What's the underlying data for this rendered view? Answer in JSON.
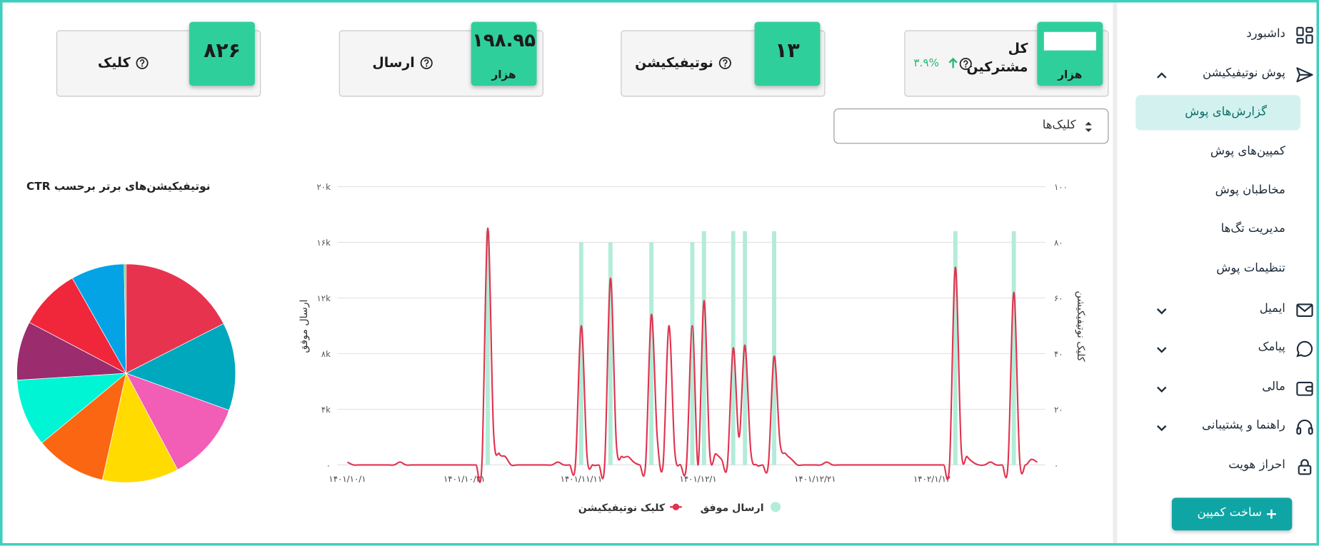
{
  "sidebar": {
    "items": [
      "داشبورد",
      "پوش نوتیفیکیشن",
      "ایمیل",
      "پیامک",
      "مالی",
      "راهنما و پشتیبانی",
      "احراز هویت"
    ],
    "subitems": [
      "گزارش‌های پوش",
      "کمپین‌های پوش",
      "مخاطبان پوش",
      "مدیریت تگ‌ها",
      "تنظیمات پوش"
    ],
    "button": "ساخت کمپین"
  },
  "stats": [
    {
      "label": "کل مشترکین",
      "unit": "هزار",
      "change": "۳.۹%"
    },
    {
      "label": "نوتیفیکیشن",
      "value": "۱۳"
    },
    {
      "label": "ارسال",
      "value": "۱۹۸.۹۵",
      "unit": "هزار"
    },
    {
      "label": "کلیک",
      "value": "۸۲۶"
    }
  ],
  "select": "کلیک‌ها",
  "chart_data": [
    {
      "type": "line",
      "ylabel": "ارسال موفق",
      "y2label": "کلیک نوتیفیکیشن",
      "categories": [
        "۱۴۰۱/۱۰/۱",
        null,
        null,
        null,
        null,
        null,
        null,
        null,
        null,
        null,
        null,
        null,
        null,
        null,
        null,
        null,
        null,
        null,
        null,
        null,
        "۱۴۰۱/۱۰/۲۱",
        null,
        null,
        null,
        null,
        null,
        null,
        null,
        null,
        null,
        null,
        null,
        null,
        null,
        null,
        null,
        null,
        null,
        null,
        null,
        "۱۴۰۱/۱۱/۱۱",
        null,
        null,
        null,
        null,
        null,
        null,
        null,
        null,
        null,
        null,
        null,
        null,
        null,
        null,
        null,
        null,
        null,
        null,
        null,
        "۱۴۰۱/۱۲/۱",
        null,
        null,
        null,
        null,
        null,
        null,
        null,
        null,
        null,
        null,
        null,
        null,
        null,
        null,
        null,
        null,
        null,
        null,
        null,
        "۱۴۰۱/۱۲/۲۱",
        null,
        null,
        null,
        null,
        null,
        null,
        null,
        null,
        null,
        null,
        null,
        null,
        null,
        null,
        null,
        null,
        null,
        null,
        null,
        "۱۴۰۲/۱/۱۲",
        null,
        null,
        null,
        null,
        null,
        null,
        null,
        null,
        null,
        null,
        null,
        null,
        null,
        null,
        null,
        null,
        null,
        null
      ],
      "series": [
        {
          "name": "ارسال موفق",
          "type": "bar",
          "color": "#b3ecd8",
          "values": [
            0,
            0,
            0,
            0,
            0,
            0,
            0,
            0,
            0,
            0,
            0,
            0,
            0,
            0,
            0,
            0,
            0,
            0,
            0,
            0,
            0,
            0,
            0,
            0,
            16800,
            0,
            0,
            0,
            0,
            0,
            0,
            0,
            0,
            0,
            0,
            0,
            0,
            0,
            0,
            0,
            16000,
            0,
            0,
            0,
            0,
            16000,
            0,
            0,
            0,
            0,
            0,
            0,
            16000,
            0,
            0,
            0,
            0,
            0,
            0,
            16000,
            0,
            16800,
            0,
            0,
            0,
            0,
            16800,
            0,
            16800,
            0,
            0,
            0,
            0,
            16800,
            0,
            0,
            0,
            0,
            0,
            0,
            0,
            0,
            0,
            0,
            0,
            0,
            0,
            0,
            0,
            0,
            0,
            0,
            0,
            0,
            0,
            0,
            0,
            0,
            0,
            0,
            0,
            0,
            0,
            0,
            16800,
            0,
            0,
            0,
            0,
            0,
            0,
            0,
            0,
            0,
            16800,
            0,
            0,
            0,
            0
          ]
        },
        {
          "name": "کلیک نوتیفیکیشن",
          "type": "line",
          "axis": "y2",
          "color": "#e0334f",
          "values": [
            1,
            0,
            0,
            0,
            0,
            0,
            0,
            0,
            0,
            1,
            0,
            0,
            0,
            0,
            0,
            0,
            0,
            0,
            0,
            0,
            0,
            0,
            0,
            0,
            85,
            12,
            4,
            3,
            0,
            0,
            0,
            0,
            0,
            0,
            0,
            0,
            1,
            0,
            0,
            0,
            50,
            3,
            0,
            0,
            0,
            67,
            8,
            3,
            3,
            1,
            0,
            0,
            54,
            10,
            0,
            50,
            5,
            0,
            0,
            50,
            0,
            59,
            4,
            4,
            2,
            0,
            42,
            10,
            43,
            5,
            0,
            0,
            0,
            39,
            8,
            4,
            2,
            0,
            0,
            0,
            0,
            0,
            1,
            0,
            0,
            0,
            0,
            0,
            0,
            0,
            0,
            0,
            0,
            0,
            0,
            0,
            0,
            0,
            0,
            0,
            0,
            0,
            0,
            0,
            71,
            6,
            3,
            1,
            0,
            0,
            1,
            0,
            0,
            0,
            62,
            2,
            0,
            2,
            1
          ]
        }
      ],
      "ylim": [
        0,
        20000
      ],
      "yticks": [
        {
          "value": 0,
          "label": "۰"
        },
        {
          "value": 4000,
          "label": "۴k"
        },
        {
          "value": 8000,
          "label": "۸k"
        },
        {
          "value": 12000,
          "label": "۱۲k"
        },
        {
          "value": 16000,
          "label": "۱۶k"
        },
        {
          "value": 20000,
          "label": "۲۰k"
        }
      ],
      "y2lim": [
        0,
        100
      ],
      "y2ticks": [
        {
          "value": 0,
          "label": "۰"
        },
        {
          "value": 20,
          "label": "۲۰"
        },
        {
          "value": 40,
          "label": "۴۰"
        },
        {
          "value": 60,
          "label": "۶۰"
        },
        {
          "value": 80,
          "label": "۸۰"
        },
        {
          "value": 100,
          "label": "۱۰۰"
        }
      ],
      "grid": true,
      "legend": "bottom"
    },
    {
      "type": "pie",
      "title": "نوتیفیکیشن‌های برتر برحسب CTR",
      "values": [
        17.5,
        13,
        11.7,
        11.3,
        10.5,
        10,
        8.7,
        9.1,
        7.9,
        0.3
      ],
      "colors": [
        "#e8334f",
        "#00a8bd",
        "#f25db5",
        "#ffdb00",
        "#fb6612",
        "#00f5d4",
        "#9b2c6e",
        "#f0263a",
        "#04a3e6",
        "#7ecb70"
      ]
    }
  ]
}
